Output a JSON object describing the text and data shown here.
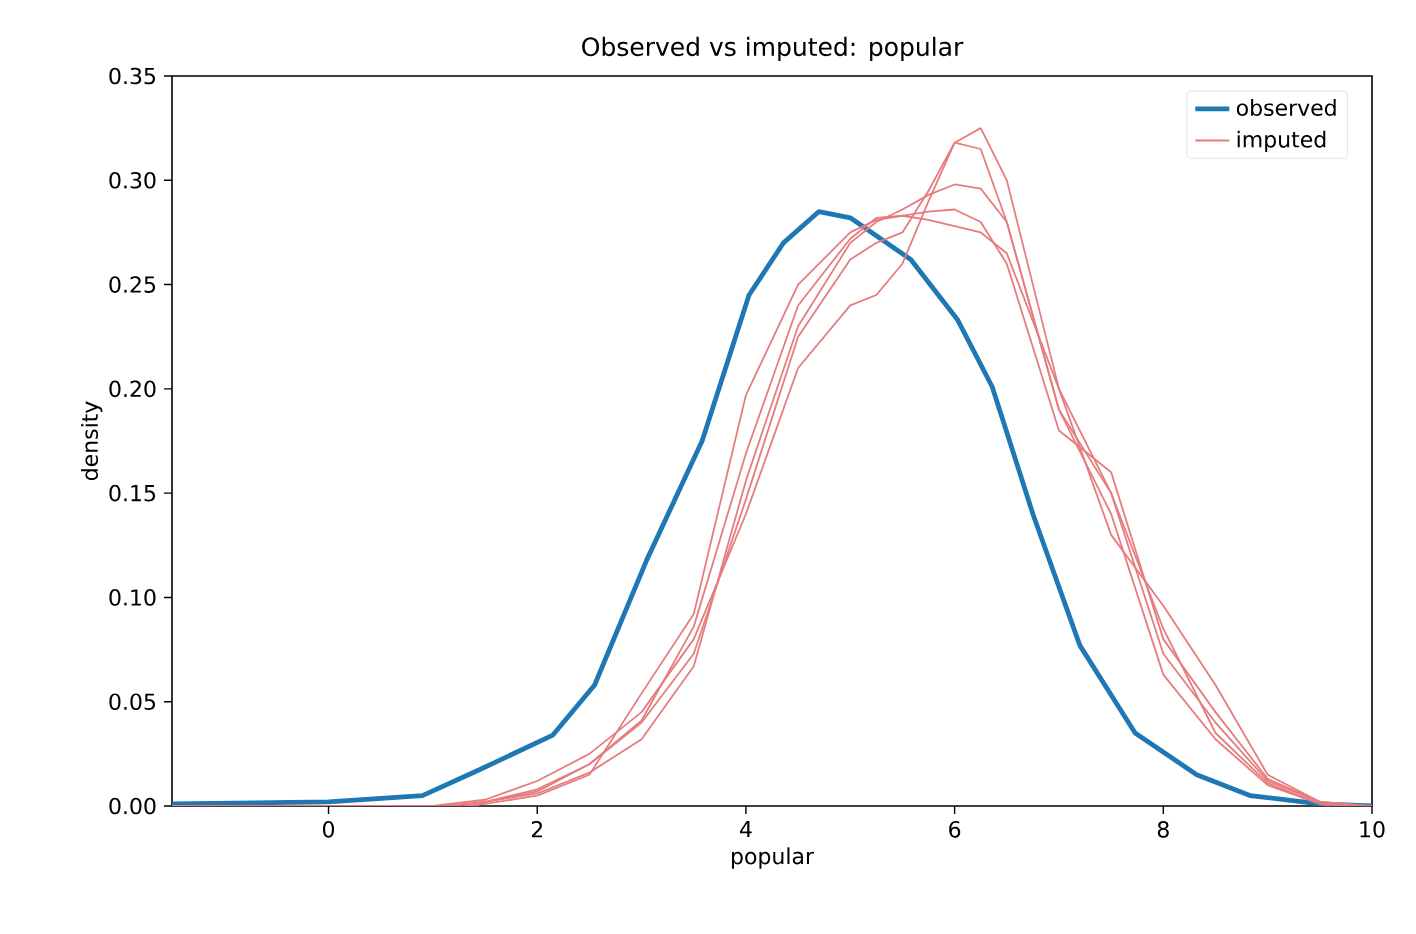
{
  "chart_data": {
    "type": "line",
    "title": "Observed vs imputed: popular",
    "xlabel": "popular",
    "ylabel": "density",
    "xlim": [
      -1.5,
      10
    ],
    "ylim": [
      0,
      0.35
    ],
    "xticks": [
      0,
      2,
      4,
      6,
      8,
      10
    ],
    "yticks": [
      {
        "value": 0,
        "label": "0.00"
      },
      {
        "value": 0.05,
        "label": "0.05"
      },
      {
        "value": 0.1,
        "label": "0.10"
      },
      {
        "value": 0.15,
        "label": "0.15"
      },
      {
        "value": 0.2,
        "label": "0.20"
      },
      {
        "value": 0.25,
        "label": "0.25"
      },
      {
        "value": 0.3,
        "label": "0.30"
      },
      {
        "value": 0.35,
        "label": "0.35"
      }
    ],
    "legend": "top right",
    "series": [
      {
        "name": "observed",
        "color": "#1f77b4",
        "x": [
          -1.5,
          0,
          0.9,
          1.43,
          2.15,
          2.55,
          3.05,
          3.58,
          4.03,
          4.36,
          4.7,
          5.0,
          5.58,
          6.03,
          6.36,
          6.75,
          7.2,
          7.73,
          8.32,
          8.83,
          9.5,
          10
        ],
        "values": [
          0.001,
          0.002,
          0.005,
          0.017,
          0.034,
          0.058,
          0.118,
          0.175,
          0.245,
          0.27,
          0.285,
          0.282,
          0.262,
          0.233,
          0.201,
          0.14,
          0.077,
          0.035,
          0.015,
          0.005,
          0.001,
          0.0
        ]
      },
      {
        "name": "imputed",
        "color": "#e67c7d",
        "x": [
          -1.5,
          1.0,
          1.5,
          2.0,
          2.5,
          3.0,
          3.5,
          4.0,
          4.5,
          5.0,
          5.25,
          5.5,
          5.75,
          6.0,
          6.25,
          6.5,
          7.0,
          7.5,
          8.0,
          8.5,
          9.0,
          9.5,
          10
        ],
        "values": [
          0.0,
          0.0,
          0.003,
          0.012,
          0.025,
          0.045,
          0.08,
          0.14,
          0.21,
          0.24,
          0.245,
          0.26,
          0.29,
          0.318,
          0.325,
          0.3,
          0.2,
          0.13,
          0.096,
          0.058,
          0.015,
          0.002,
          0.0
        ]
      },
      {
        "color": "#e67c7d",
        "x": [
          1.1,
          1.5,
          2.0,
          2.5,
          3.0,
          3.5,
          4.0,
          4.5,
          5.0,
          5.25,
          5.5,
          5.75,
          6.0,
          6.25,
          6.5,
          7.0,
          7.5,
          8.0,
          8.5,
          9.0,
          9.5,
          9.9
        ],
        "values": [
          0.0,
          0.002,
          0.008,
          0.02,
          0.04,
          0.073,
          0.147,
          0.225,
          0.262,
          0.27,
          0.275,
          0.295,
          0.318,
          0.315,
          0.28,
          0.19,
          0.15,
          0.073,
          0.04,
          0.012,
          0.002,
          0.0
        ]
      },
      {
        "color": "#e67c7d",
        "x": [
          1.2,
          1.5,
          2.0,
          2.5,
          3.0,
          3.5,
          4.0,
          4.5,
          5.0,
          5.25,
          5.5,
          5.75,
          6.0,
          6.25,
          6.5,
          7.0,
          7.5,
          8.0,
          8.5,
          9.0,
          9.5,
          9.8
        ],
        "values": [
          0.0,
          0.002,
          0.006,
          0.016,
          0.032,
          0.067,
          0.156,
          0.23,
          0.27,
          0.28,
          0.286,
          0.293,
          0.298,
          0.296,
          0.28,
          0.19,
          0.14,
          0.063,
          0.032,
          0.01,
          0.001,
          0.0
        ]
      },
      {
        "color": "#e67c7d",
        "x": [
          1.3,
          1.5,
          2.0,
          2.5,
          3.0,
          3.5,
          4.0,
          4.5,
          5.0,
          5.25,
          5.5,
          5.75,
          6.0,
          6.25,
          6.5,
          7.0,
          7.5,
          8.0,
          8.5,
          9.0,
          9.5,
          9.7
        ],
        "values": [
          0.0,
          0.001,
          0.005,
          0.015,
          0.054,
          0.092,
          0.197,
          0.25,
          0.275,
          0.281,
          0.283,
          0.285,
          0.286,
          0.28,
          0.26,
          0.18,
          0.16,
          0.08,
          0.045,
          0.013,
          0.002,
          0.0
        ]
      },
      {
        "color": "#e67c7d",
        "x": [
          1.4,
          1.5,
          2.0,
          2.5,
          3.0,
          3.5,
          4.0,
          4.5,
          5.0,
          5.25,
          5.5,
          5.75,
          6.0,
          6.25,
          6.5,
          7.0,
          7.5,
          8.0,
          8.5,
          9.0,
          9.5,
          9.6
        ],
        "values": [
          0.0,
          0.002,
          0.007,
          0.02,
          0.041,
          0.086,
          0.169,
          0.24,
          0.272,
          0.282,
          0.283,
          0.281,
          0.278,
          0.275,
          0.265,
          0.2,
          0.15,
          0.085,
          0.035,
          0.011,
          0.001,
          0.0
        ]
      }
    ]
  }
}
